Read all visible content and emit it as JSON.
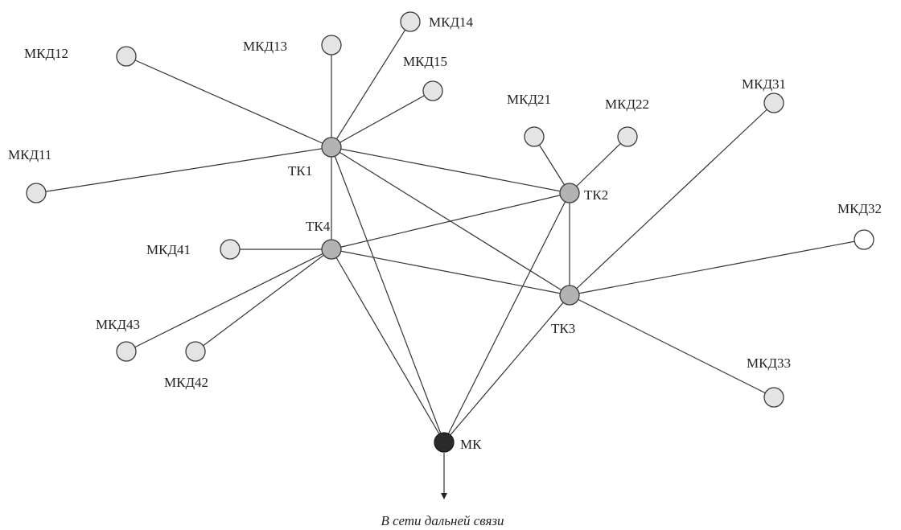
{
  "diagram": {
    "nodes": {
      "tk1": "ТК1",
      "tk2": "ТК2",
      "tk3": "ТК3",
      "tk4": "ТК4",
      "mk": "МК",
      "mkd11": "МКД11",
      "mkd12": "МКД12",
      "mkd13": "МКД13",
      "mkd14": "МКД14",
      "mkd15": "МКД15",
      "mkd21": "МКД21",
      "mkd22": "МКД22",
      "mkd31": "МКД31",
      "mkd32": "МКД32",
      "mkd33": "МКД33",
      "mkd41": "МКД41",
      "mkd42": "МКД42",
      "mkd43": "МКД43"
    },
    "edges": [
      [
        "mkd11",
        "tk1"
      ],
      [
        "mkd12",
        "tk1"
      ],
      [
        "mkd13",
        "tk1"
      ],
      [
        "mkd14",
        "tk1"
      ],
      [
        "mkd15",
        "tk1"
      ],
      [
        "mkd21",
        "tk2"
      ],
      [
        "mkd22",
        "tk2"
      ],
      [
        "mkd31",
        "tk3"
      ],
      [
        "mkd32",
        "tk3"
      ],
      [
        "mkd33",
        "tk3"
      ],
      [
        "mkd41",
        "tk4"
      ],
      [
        "mkd42",
        "tk4"
      ],
      [
        "mkd43",
        "tk4"
      ],
      [
        "tk1",
        "tk2"
      ],
      [
        "tk1",
        "tk3"
      ],
      [
        "tk1",
        "tk4"
      ],
      [
        "tk1",
        "mk"
      ],
      [
        "tk2",
        "tk3"
      ],
      [
        "tk2",
        "tk4"
      ],
      [
        "tk2",
        "mk"
      ],
      [
        "tk3",
        "tk4"
      ],
      [
        "tk3",
        "mk"
      ],
      [
        "tk4",
        "mk"
      ]
    ],
    "caption": "В сети дальней связи"
  }
}
